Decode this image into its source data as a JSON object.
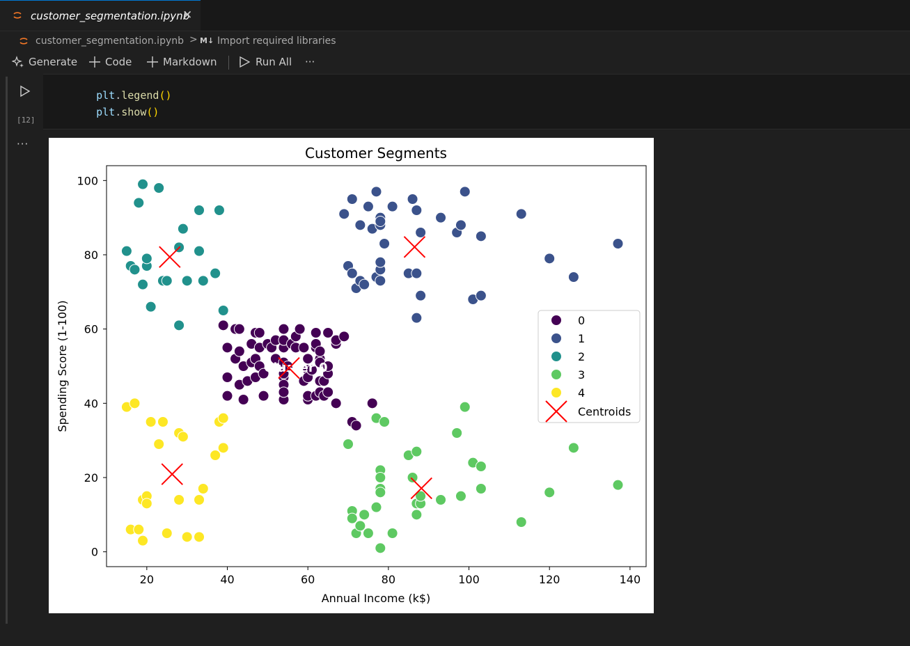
{
  "tab": {
    "label": "customer_segmentation.ipynb",
    "close_glyph": "✕"
  },
  "breadcrumb": {
    "file": "customer_segmentation.ipynb",
    "separator": ">",
    "md_badge": "M↓",
    "section": "Import required libraries"
  },
  "toolbar": {
    "generate": "Generate",
    "code": "Code",
    "markdown": "Markdown",
    "run_all": "Run All",
    "more": "···"
  },
  "cell": {
    "code_lines": [
      "plt.legend()",
      "plt.show()"
    ],
    "exec_count": "[12]",
    "output_menu": "···"
  },
  "colors": {
    "c0": "#440154",
    "c1": "#3b528b",
    "c2": "#21918c",
    "c3": "#5ec962",
    "c4": "#fde725",
    "centroid": "#ff0000"
  },
  "chart_data": {
    "type": "scatter",
    "title": "Customer Segments",
    "xlabel": "Annual Income (k$)",
    "ylabel": "Spending Score (1-100)",
    "xlim": [
      10,
      144
    ],
    "ylim": [
      -4,
      104
    ],
    "xticks": [
      20,
      40,
      60,
      80,
      100,
      120,
      140
    ],
    "yticks": [
      0,
      20,
      40,
      60,
      80,
      100
    ],
    "grid": false,
    "legend_placement": "center-right",
    "annotation": "Cluster 0",
    "series": [
      {
        "name": "0",
        "points": [
          [
            39,
            61
          ],
          [
            40,
            55
          ],
          [
            40,
            47
          ],
          [
            40,
            42
          ],
          [
            42,
            52
          ],
          [
            42,
            60
          ],
          [
            43,
            54
          ],
          [
            43,
            60
          ],
          [
            43,
            45
          ],
          [
            44,
            50
          ],
          [
            44,
            41
          ],
          [
            45,
            46
          ],
          [
            46,
            51
          ],
          [
            46,
            56
          ],
          [
            47,
            52
          ],
          [
            47,
            59
          ],
          [
            47,
            47
          ],
          [
            48,
            59
          ],
          [
            48,
            55
          ],
          [
            48,
            50
          ],
          [
            49,
            48
          ],
          [
            49,
            42
          ],
          [
            50,
            56
          ],
          [
            51,
            55
          ],
          [
            52,
            52
          ],
          [
            52,
            57
          ],
          [
            54,
            60
          ],
          [
            54,
            51
          ],
          [
            54,
            55
          ],
          [
            54,
            47
          ],
          [
            54,
            45
          ],
          [
            54,
            41
          ],
          [
            54,
            48
          ],
          [
            54,
            43
          ],
          [
            54,
            57
          ],
          [
            55,
            50
          ],
          [
            56,
            56
          ],
          [
            57,
            55
          ],
          [
            57,
            58
          ],
          [
            58,
            60
          ],
          [
            59,
            46
          ],
          [
            59,
            55
          ],
          [
            60,
            52
          ],
          [
            60,
            41
          ],
          [
            60,
            49
          ],
          [
            60,
            47
          ],
          [
            60,
            42
          ],
          [
            61,
            49
          ],
          [
            62,
            59
          ],
          [
            62,
            55
          ],
          [
            62,
            56
          ],
          [
            62,
            42
          ],
          [
            63,
            52
          ],
          [
            63,
            54
          ],
          [
            63,
            51
          ],
          [
            63,
            46
          ],
          [
            63,
            43
          ],
          [
            64,
            42
          ],
          [
            64,
            46
          ],
          [
            65,
            48
          ],
          [
            65,
            50
          ],
          [
            65,
            59
          ],
          [
            65,
            43
          ],
          [
            67,
            56
          ],
          [
            67,
            40
          ],
          [
            67,
            57
          ],
          [
            69,
            58
          ],
          [
            76,
            40
          ],
          [
            71,
            35
          ],
          [
            72,
            34
          ]
        ]
      },
      {
        "name": "1",
        "points": [
          [
            69,
            91
          ],
          [
            70,
            77
          ],
          [
            71,
            95
          ],
          [
            71,
            75
          ],
          [
            72,
            71
          ],
          [
            73,
            88
          ],
          [
            73,
            73
          ],
          [
            74,
            72
          ],
          [
            75,
            93
          ],
          [
            76,
            87
          ],
          [
            77,
            97
          ],
          [
            77,
            74
          ],
          [
            78,
            90
          ],
          [
            78,
            88
          ],
          [
            78,
            89
          ],
          [
            78,
            76
          ],
          [
            78,
            73
          ],
          [
            78,
            78
          ],
          [
            79,
            83
          ],
          [
            81,
            93
          ],
          [
            85,
            75
          ],
          [
            86,
            95
          ],
          [
            87,
            92
          ],
          [
            87,
            75
          ],
          [
            87,
            63
          ],
          [
            88,
            86
          ],
          [
            88,
            69
          ],
          [
            93,
            90
          ],
          [
            97,
            86
          ],
          [
            98,
            88
          ],
          [
            99,
            97
          ],
          [
            101,
            68
          ],
          [
            103,
            85
          ],
          [
            103,
            69
          ],
          [
            113,
            91
          ],
          [
            120,
            79
          ],
          [
            126,
            74
          ],
          [
            137,
            83
          ]
        ]
      },
      {
        "name": "2",
        "points": [
          [
            15,
            81
          ],
          [
            16,
            77
          ],
          [
            17,
            76
          ],
          [
            18,
            94
          ],
          [
            19,
            72
          ],
          [
            19,
            99
          ],
          [
            20,
            77
          ],
          [
            20,
            79
          ],
          [
            21,
            66
          ],
          [
            23,
            98
          ],
          [
            24,
            73
          ],
          [
            25,
            73
          ],
          [
            28,
            82
          ],
          [
            28,
            61
          ],
          [
            29,
            87
          ],
          [
            30,
            73
          ],
          [
            33,
            92
          ],
          [
            33,
            81
          ],
          [
            34,
            73
          ],
          [
            37,
            75
          ],
          [
            38,
            92
          ],
          [
            39,
            65
          ]
        ]
      },
      {
        "name": "3",
        "points": [
          [
            70,
            29
          ],
          [
            71,
            11
          ],
          [
            71,
            9
          ],
          [
            72,
            5
          ],
          [
            73,
            7
          ],
          [
            74,
            10
          ],
          [
            75,
            5
          ],
          [
            77,
            12
          ],
          [
            77,
            36
          ],
          [
            78,
            22
          ],
          [
            78,
            20
          ],
          [
            78,
            17
          ],
          [
            78,
            16
          ],
          [
            78,
            1
          ],
          [
            79,
            35
          ],
          [
            81,
            5
          ],
          [
            85,
            26
          ],
          [
            86,
            20
          ],
          [
            87,
            27
          ],
          [
            87,
            13
          ],
          [
            87,
            10
          ],
          [
            88,
            13
          ],
          [
            88,
            15
          ],
          [
            93,
            14
          ],
          [
            97,
            32
          ],
          [
            98,
            15
          ],
          [
            99,
            39
          ],
          [
            101,
            24
          ],
          [
            103,
            23
          ],
          [
            103,
            17
          ],
          [
            113,
            8
          ],
          [
            120,
            16
          ],
          [
            126,
            28
          ],
          [
            137,
            18
          ]
        ]
      },
      {
        "name": "4",
        "points": [
          [
            15,
            39
          ],
          [
            16,
            6
          ],
          [
            17,
            40
          ],
          [
            18,
            6
          ],
          [
            19,
            3
          ],
          [
            19,
            14
          ],
          [
            20,
            15
          ],
          [
            20,
            13
          ],
          [
            21,
            35
          ],
          [
            23,
            29
          ],
          [
            24,
            35
          ],
          [
            25,
            5
          ],
          [
            28,
            32
          ],
          [
            28,
            14
          ],
          [
            29,
            31
          ],
          [
            30,
            4
          ],
          [
            33,
            4
          ],
          [
            33,
            14
          ],
          [
            34,
            17
          ],
          [
            37,
            26
          ],
          [
            38,
            35
          ],
          [
            39,
            36
          ],
          [
            39,
            28
          ]
        ]
      }
    ],
    "centroids": {
      "name": "Centroids",
      "points": [
        [
          55.3,
          49.5
        ],
        [
          86.5,
          82.1
        ],
        [
          25.7,
          79.4
        ],
        [
          88.2,
          17.1
        ],
        [
          26.3,
          20.9
        ]
      ]
    }
  }
}
